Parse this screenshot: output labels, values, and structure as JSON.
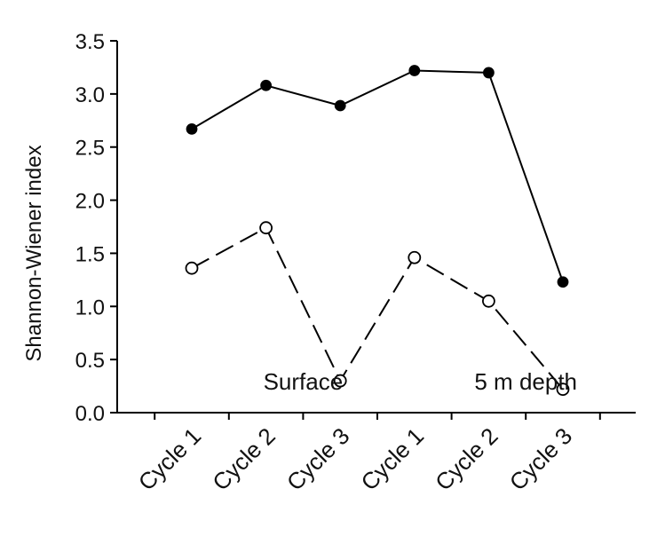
{
  "chart_data": {
    "type": "line",
    "title": "",
    "xlabel": "",
    "ylabel": "Shannon-Wiener index",
    "ylim": [
      0,
      3.5
    ],
    "yticks": [
      0.0,
      0.5,
      1.0,
      1.5,
      2.0,
      2.5,
      3.0,
      3.5
    ],
    "ytick_labels": [
      "0.0",
      "0.5",
      "1.0",
      "1.5",
      "2.0",
      "2.5",
      "3.0",
      "3.5"
    ],
    "categories": [
      "Cycle 1",
      "Cycle 2",
      "Cycle 3",
      "Cycle 1",
      "Cycle 2",
      "Cycle 3"
    ],
    "grid": false,
    "legend": "none",
    "series": [
      {
        "values": [
          2.67,
          3.08,
          2.89,
          3.22,
          3.2,
          1.23
        ],
        "marker": "filled-circle",
        "line_style": "solid",
        "color": "#000000"
      },
      {
        "values": [
          1.36,
          1.74,
          0.3,
          1.46,
          1.05,
          0.22
        ],
        "marker": "open-circle",
        "line_style": "dashed",
        "color": "#000000"
      }
    ],
    "annotations": [
      {
        "text": "Surface",
        "x_category": 1.5,
        "y": 0.3
      },
      {
        "text": "5 m depth",
        "x_category": 4.5,
        "y": 0.3
      }
    ]
  }
}
